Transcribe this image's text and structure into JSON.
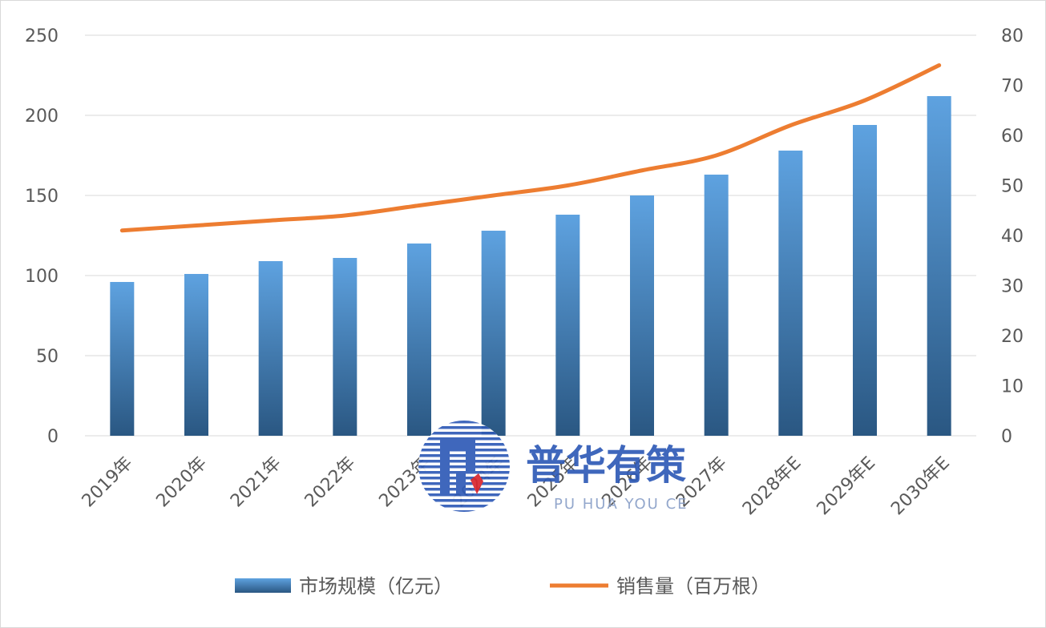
{
  "chart_data": {
    "type": "bar",
    "categories": [
      "2019年",
      "2020年",
      "2021年",
      "2022年",
      "2023年",
      "2024年",
      "2025年",
      "2026年",
      "2027年",
      "2028年E",
      "2029年E",
      "2030年E"
    ],
    "series": [
      {
        "name": "市场规模（亿元）",
        "type": "bar",
        "axis": "left",
        "values": [
          96,
          101,
          109,
          111,
          120,
          128,
          138,
          150,
          163,
          178,
          194,
          212
        ]
      },
      {
        "name": "销售量（百万根）",
        "type": "line",
        "axis": "right",
        "values": [
          41,
          42,
          43,
          44,
          46,
          48,
          50,
          53,
          56,
          62,
          67,
          74
        ]
      }
    ],
    "y_left": {
      "min": 0,
      "max": 250,
      "ticks": [
        0,
        50,
        100,
        150,
        200,
        250
      ]
    },
    "y_right": {
      "min": 0,
      "max": 80,
      "ticks": [
        0,
        10,
        20,
        30,
        40,
        50,
        60,
        70,
        80
      ]
    },
    "grid": true,
    "legend_position": "bottom",
    "colors": {
      "bar_top": "#5ea2e0",
      "bar_bottom": "#2a5782",
      "line": "#ed7d31",
      "grid": "#d9d9d9",
      "text": "#595959"
    }
  },
  "watermark": {
    "name_cn": "普华有策",
    "name_en": "PU HUA YOU CE"
  }
}
